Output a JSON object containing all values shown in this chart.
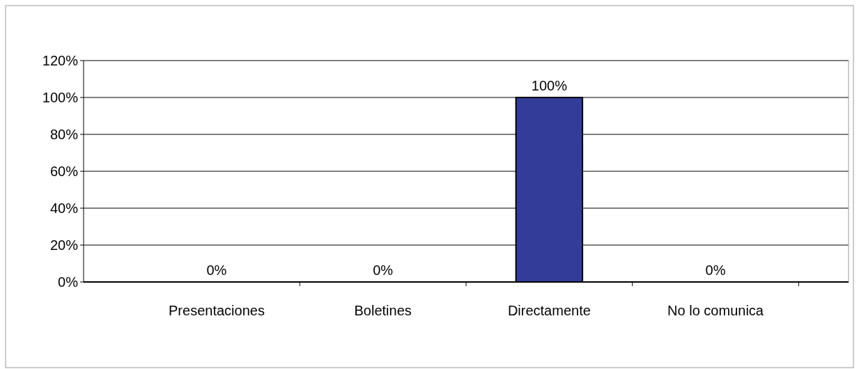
{
  "chart_data": {
    "type": "bar",
    "categories": [
      "Presentaciones",
      "Boletines",
      "Directamente",
      "No lo comunica"
    ],
    "values": [
      0,
      0,
      100,
      0
    ],
    "color": "#333d99",
    "data_labels": true,
    "value_labels": [
      "0%",
      "0%",
      "100%",
      "0%"
    ],
    "ylim": [
      0,
      120
    ],
    "yticks": [
      {
        "value": 0,
        "label": "0%"
      },
      {
        "value": 20,
        "label": "20%"
      },
      {
        "value": 40,
        "label": "40%"
      },
      {
        "value": 60,
        "label": "60%"
      },
      {
        "value": 80,
        "label": "80%"
      },
      {
        "value": 100,
        "label": "100%"
      },
      {
        "value": 120,
        "label": "120%"
      }
    ],
    "grid": "y"
  }
}
